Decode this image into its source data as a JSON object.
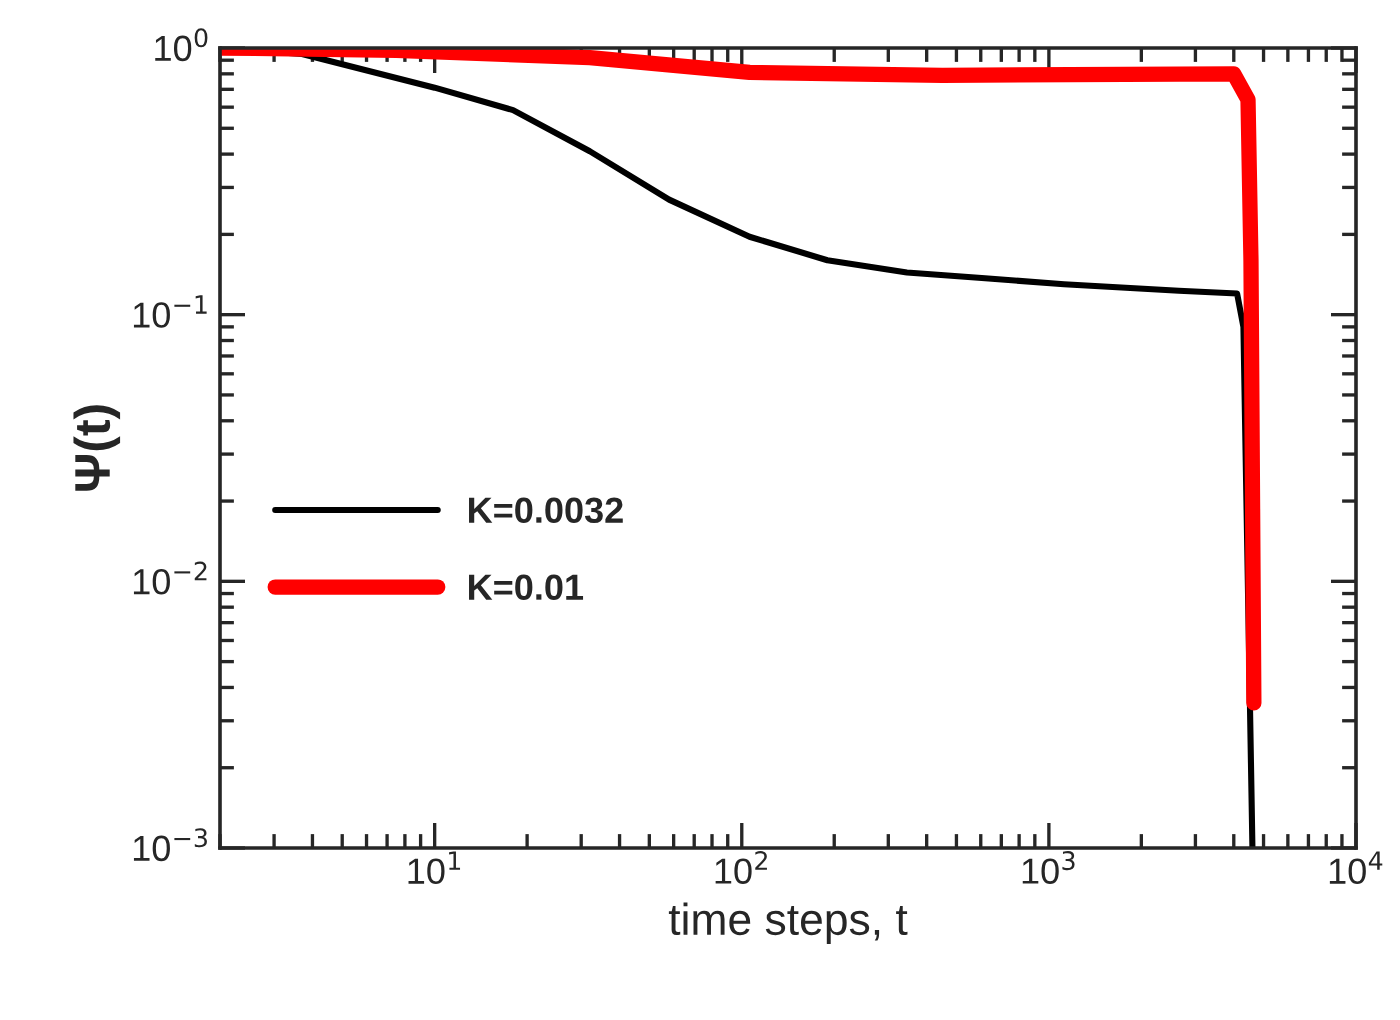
{
  "chart_data": {
    "type": "line",
    "xlabel": "time steps, t",
    "ylabel": "Ψ(t)",
    "log": "xy",
    "xlim": [
      2,
      10000
    ],
    "ylim": [
      0.001,
      1
    ],
    "xticks": [
      {
        "value": 10,
        "label": "10$^{1}$"
      },
      {
        "value": 100,
        "label": "10$^{2}$"
      },
      {
        "value": 1000,
        "label": "10$^{3}$"
      },
      {
        "value": 10000,
        "label": "10$^{4}$"
      }
    ],
    "yticks": [
      {
        "value": 0.001,
        "label": "10$^{−3}$"
      },
      {
        "value": 0.01,
        "label": "10$^{−2}$"
      },
      {
        "value": 0.1,
        "label": "10$^{−1}$"
      },
      {
        "value": 1,
        "label": "10$^{0}$"
      }
    ],
    "legend": "left",
    "grid": false,
    "series": [
      {
        "name": "K=0.0032",
        "color": "#000000",
        "x": [
          2,
          3.7,
          10,
          18,
          32,
          58,
          106,
          190,
          345,
          620,
          1120,
          2650,
          4100,
          4300,
          4600
        ],
        "values": [
          1,
          0.95,
          0.71,
          0.585,
          0.41,
          0.27,
          0.196,
          0.16,
          0.144,
          0.137,
          0.13,
          0.123,
          0.12,
          0.09,
          0.001
        ]
      },
      {
        "name": "K=0.01",
        "color": "#ff0000",
        "x": [
          2,
          7.5,
          32,
          106,
          450,
          4000,
          4450,
          4550,
          4650
        ],
        "values": [
          1,
          0.98,
          0.92,
          0.81,
          0.79,
          0.8,
          0.64,
          0.16,
          0.0035
        ]
      }
    ]
  }
}
